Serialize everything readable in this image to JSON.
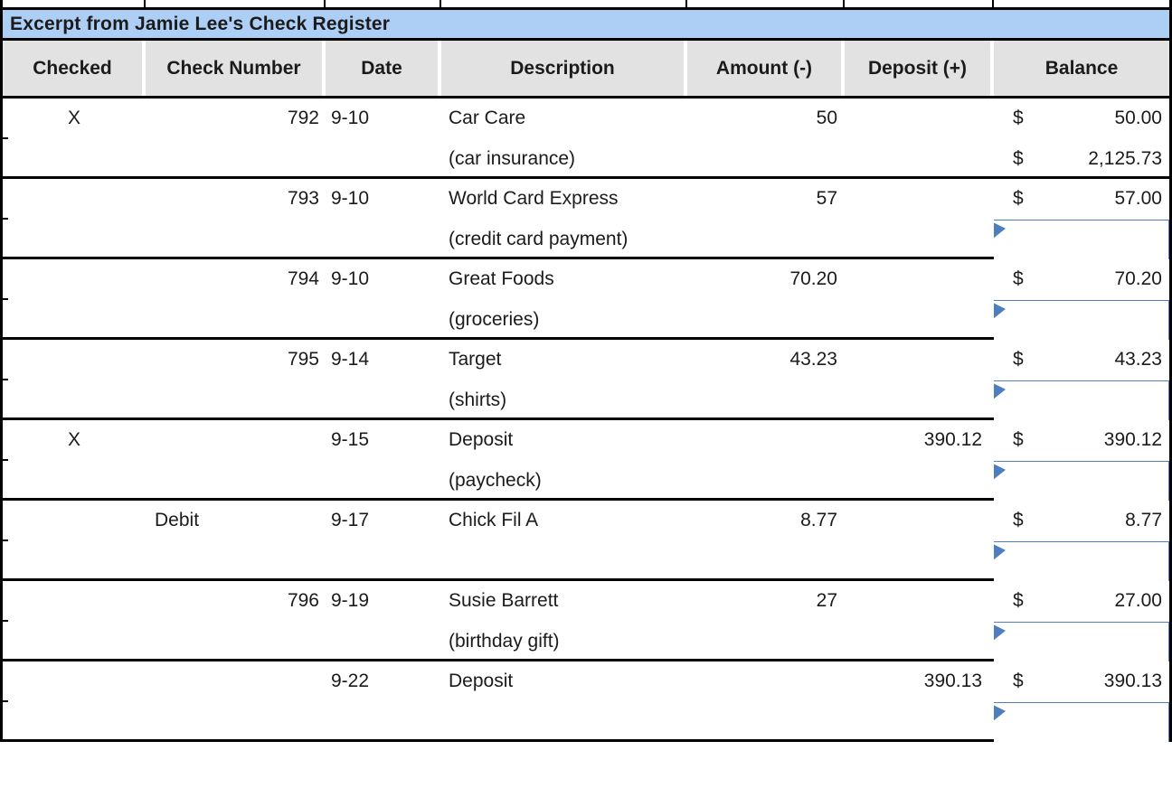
{
  "title": "Excerpt from Jamie Lee's Check Register",
  "columns": [
    "Checked",
    "Check Number",
    "Date",
    "Description",
    "Amount (-)",
    "Deposit (+)",
    "Balance"
  ],
  "labels": {
    "currency": "$"
  },
  "colors": {
    "title_bg": "#aecff5",
    "header_bg": "#e2e2e2",
    "grid_line": "#000000",
    "input_border": "#4d7ebf",
    "flag": "#4d7ebf"
  },
  "rows": [
    {
      "checked": "X",
      "check_number": "792",
      "date": "9-10",
      "description": "Car Care",
      "description_note": "(car insurance)",
      "amount": "50",
      "deposit": "",
      "balance": "50.00",
      "balance2": "2,125.73",
      "has_input": false
    },
    {
      "checked": "",
      "check_number": "793",
      "date": "9-10",
      "description": "World Card Express",
      "description_note": "(credit card payment)",
      "amount": "57",
      "deposit": "",
      "balance": "57.00",
      "has_input": true
    },
    {
      "checked": "",
      "check_number": "794",
      "date": "9-10",
      "description": "Great Foods",
      "description_note": "(groceries)",
      "amount": "70.20",
      "deposit": "",
      "balance": "70.20",
      "has_input": true
    },
    {
      "checked": "",
      "check_number": "795",
      "date": "9-14",
      "description": "Target",
      "description_note": "(shirts)",
      "amount": "43.23",
      "deposit": "",
      "balance": "43.23",
      "has_input": true
    },
    {
      "checked": "X",
      "check_number": "",
      "date": "9-15",
      "description": "Deposit",
      "description_note": "(paycheck)",
      "amount": "",
      "deposit": "390.12",
      "balance": "390.12",
      "has_input": true
    },
    {
      "checked": "",
      "check_number": "Debit",
      "check_number_align": "left",
      "date": "9-17",
      "description": "Chick Fil A",
      "description_note": "",
      "amount": "8.77",
      "deposit": "",
      "balance": "8.77",
      "has_input": true
    },
    {
      "checked": "",
      "check_number": "796",
      "date": "9-19",
      "description": "Susie Barrett",
      "description_note": "(birthday gift)",
      "amount": "27",
      "deposit": "",
      "balance": "27.00",
      "has_input": true
    },
    {
      "checked": "",
      "check_number": "",
      "date": "9-22",
      "description": "Deposit",
      "description_note": "",
      "amount": "",
      "deposit": "390.13",
      "balance": "390.13",
      "has_input": true
    }
  ]
}
